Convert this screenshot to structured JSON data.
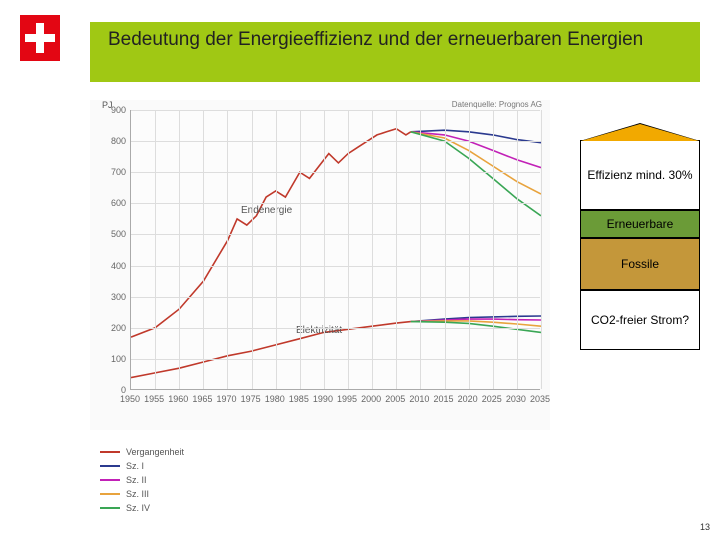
{
  "title": "Bedeutung der Energieeffizienz und der erneuerbaren Energien",
  "title_bar_color": "#a0c814",
  "logo": {
    "bg": "#e30613",
    "cross": "#ffffff"
  },
  "chart": {
    "type": "line",
    "y_axis_label": "PJ",
    "source_label": "Datenquelle: Prognos AG",
    "xlim": [
      1950,
      2035
    ],
    "ylim": [
      0,
      900
    ],
    "ytick_step": 100,
    "xtick_step": 5,
    "grid_color": "#dddddd",
    "axis_color": "#aaaaaa",
    "background": "#fcfcfc",
    "series_labels": {
      "top": "Endenergie",
      "bottom": "Elektrizität"
    },
    "series": [
      {
        "name": "Vergangenheit",
        "color": "#c0392b",
        "endenergie": [
          [
            1950,
            170
          ],
          [
            1955,
            200
          ],
          [
            1960,
            260
          ],
          [
            1965,
            350
          ],
          [
            1970,
            480
          ],
          [
            1972,
            550
          ],
          [
            1974,
            530
          ],
          [
            1976,
            560
          ],
          [
            1978,
            620
          ],
          [
            1980,
            640
          ],
          [
            1982,
            620
          ],
          [
            1985,
            700
          ],
          [
            1987,
            680
          ],
          [
            1989,
            720
          ],
          [
            1991,
            760
          ],
          [
            1993,
            730
          ],
          [
            1995,
            760
          ],
          [
            1997,
            780
          ],
          [
            1999,
            800
          ],
          [
            2001,
            820
          ],
          [
            2003,
            830
          ],
          [
            2005,
            840
          ],
          [
            2007,
            820
          ],
          [
            2008,
            830
          ]
        ],
        "elektrizitaet": [
          [
            1950,
            40
          ],
          [
            1955,
            55
          ],
          [
            1960,
            70
          ],
          [
            1965,
            90
          ],
          [
            1970,
            110
          ],
          [
            1975,
            125
          ],
          [
            1980,
            145
          ],
          [
            1985,
            165
          ],
          [
            1990,
            185
          ],
          [
            1995,
            195
          ],
          [
            2000,
            205
          ],
          [
            2005,
            215
          ],
          [
            2008,
            220
          ]
        ]
      },
      {
        "name": "Sz. I",
        "color": "#2b3a8f",
        "endenergie": [
          [
            2008,
            830
          ],
          [
            2015,
            835
          ],
          [
            2020,
            830
          ],
          [
            2025,
            820
          ],
          [
            2030,
            805
          ],
          [
            2035,
            795
          ]
        ],
        "elektrizitaet": [
          [
            2008,
            220
          ],
          [
            2015,
            228
          ],
          [
            2020,
            233
          ],
          [
            2025,
            235
          ],
          [
            2030,
            237
          ],
          [
            2035,
            238
          ]
        ]
      },
      {
        "name": "Sz. II",
        "color": "#c221b7",
        "endenergie": [
          [
            2008,
            830
          ],
          [
            2015,
            820
          ],
          [
            2020,
            800
          ],
          [
            2025,
            770
          ],
          [
            2030,
            740
          ],
          [
            2035,
            715
          ]
        ],
        "elektrizitaet": [
          [
            2008,
            220
          ],
          [
            2015,
            225
          ],
          [
            2020,
            228
          ],
          [
            2025,
            228
          ],
          [
            2030,
            226
          ],
          [
            2035,
            225
          ]
        ]
      },
      {
        "name": "Sz. III",
        "color": "#e8a33d",
        "endenergie": [
          [
            2008,
            830
          ],
          [
            2015,
            810
          ],
          [
            2020,
            770
          ],
          [
            2025,
            720
          ],
          [
            2030,
            670
          ],
          [
            2035,
            630
          ]
        ],
        "elektrizitaet": [
          [
            2008,
            220
          ],
          [
            2015,
            222
          ],
          [
            2020,
            222
          ],
          [
            2025,
            218
          ],
          [
            2030,
            212
          ],
          [
            2035,
            205
          ]
        ]
      },
      {
        "name": "Sz. IV",
        "color": "#3aa655",
        "endenergie": [
          [
            2008,
            830
          ],
          [
            2015,
            800
          ],
          [
            2020,
            745
          ],
          [
            2025,
            680
          ],
          [
            2030,
            615
          ],
          [
            2035,
            560
          ]
        ],
        "elektrizitaet": [
          [
            2008,
            220
          ],
          [
            2015,
            218
          ],
          [
            2020,
            214
          ],
          [
            2025,
            205
          ],
          [
            2030,
            195
          ],
          [
            2035,
            185
          ]
        ]
      }
    ]
  },
  "annotations": {
    "effizienz": {
      "label": "Effizienz mind. 30%",
      "bg": "#ffffff",
      "roof": "#f2a900"
    },
    "erneuerbare": {
      "label": "Erneuerbare",
      "bg": "#6b9b37"
    },
    "fossile": {
      "label": "Fossile",
      "bg": "#c4973a"
    },
    "strom": {
      "label": "CO2-freier Strom?",
      "bg": "#ffffff"
    }
  },
  "legend": [
    {
      "label": "Vergangenheit",
      "color": "#c0392b"
    },
    {
      "label": "Sz. I",
      "color": "#2b3a8f"
    },
    {
      "label": "Sz. II",
      "color": "#c221b7"
    },
    {
      "label": "Sz. III",
      "color": "#e8a33d"
    },
    {
      "label": "Sz. IV",
      "color": "#3aa655"
    }
  ],
  "page_number": "13"
}
